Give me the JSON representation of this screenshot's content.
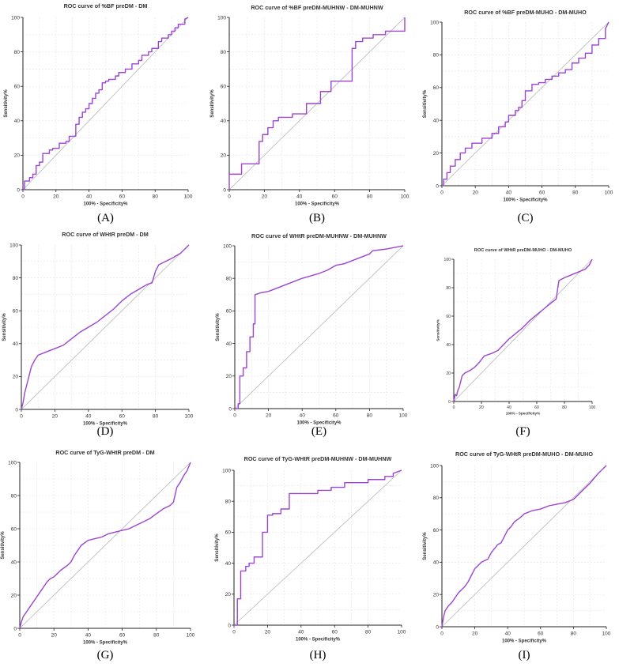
{
  "colors": {
    "roc": "#9b45d1",
    "reference": "#b8b8b8",
    "grid": "#e4e4e4",
    "axis": "#222222"
  },
  "chart_data": [
    {
      "panel": "(A)",
      "type": "line",
      "title": "ROC curve of %BF preDM - DM",
      "xlabel": "100% - Specificity%",
      "ylabel": "Sensitivity%",
      "xlim": [
        0,
        100
      ],
      "ylim": [
        0,
        100
      ],
      "xticks": [
        "0",
        "20",
        "40",
        "60",
        "80",
        "100"
      ],
      "yticks": [
        "0",
        "20",
        "40",
        "60",
        "80",
        "100"
      ],
      "grid": true,
      "series": [
        {
          "x": [
            0,
            1,
            1,
            4,
            4,
            6,
            6,
            8,
            8,
            10,
            10,
            12,
            12,
            16,
            16,
            18,
            18,
            22,
            22,
            26,
            26,
            28,
            28,
            32,
            32,
            34,
            34,
            36,
            36,
            38,
            38,
            40,
            40,
            42,
            42,
            44,
            44,
            46,
            46,
            48,
            48,
            50,
            50,
            52,
            52,
            56,
            56,
            58,
            58,
            62,
            62,
            66,
            66,
            70,
            70,
            72,
            72,
            76,
            76,
            78,
            78,
            82,
            82,
            84,
            84,
            88,
            88,
            90,
            90,
            92,
            92,
            94,
            94,
            98,
            98,
            100
          ],
          "y": [
            0,
            0,
            5,
            5,
            7,
            7,
            9,
            9,
            14,
            14,
            16,
            16,
            21,
            21,
            23,
            23,
            24,
            24,
            27,
            27,
            28,
            28,
            31,
            31,
            38,
            38,
            42,
            42,
            45,
            45,
            47,
            47,
            50,
            50,
            53,
            53,
            56,
            56,
            58,
            58,
            62,
            62,
            63,
            63,
            64,
            64,
            66,
            66,
            68,
            68,
            70,
            70,
            73,
            73,
            75,
            75,
            78,
            78,
            80,
            80,
            82,
            82,
            86,
            86,
            88,
            88,
            90,
            90,
            92,
            92,
            94,
            94,
            96,
            96,
            99,
            100
          ]
        }
      ]
    },
    {
      "panel": "(B)",
      "type": "line",
      "title": "ROC curve of %BF preDM-MUHNW - DM-MUHNW",
      "xlabel": "100% - Specificity%",
      "ylabel": "Sensitivity%",
      "xlim": [
        0,
        100
      ],
      "ylim": [
        0,
        100
      ],
      "xticks": [
        "0",
        "20",
        "40",
        "60",
        "80",
        "100"
      ],
      "yticks": [
        "0",
        "20",
        "40",
        "60",
        "80",
        "100"
      ],
      "grid": true,
      "series": [
        {
          "x": [
            0,
            0,
            7,
            7,
            17,
            17,
            19,
            19,
            22,
            22,
            25,
            25,
            28,
            28,
            36,
            36,
            44,
            44,
            52,
            52,
            58,
            58,
            70,
            70,
            72,
            72,
            76,
            76,
            82,
            82,
            89,
            89,
            100,
            100
          ],
          "y": [
            0,
            9,
            9,
            15,
            15,
            28,
            28,
            32,
            32,
            36,
            36,
            40,
            40,
            42,
            42,
            44,
            44,
            50,
            50,
            57,
            57,
            63,
            63,
            82,
            82,
            86,
            86,
            88,
            88,
            90,
            90,
            92,
            92,
            100
          ]
        }
      ]
    },
    {
      "panel": "(C)",
      "type": "line",
      "title": "ROC curve of %BF preDM-MUHO - DM-MUHO",
      "xlabel": "100% - Specificity%",
      "ylabel": "Sensitivity%",
      "xlim": [
        0,
        100
      ],
      "ylim": [
        0,
        100
      ],
      "xticks": [
        "0",
        "20",
        "40",
        "60",
        "80",
        "100"
      ],
      "yticks": [
        "0",
        "20",
        "40",
        "60",
        "80",
        "100"
      ],
      "grid": true,
      "series": [
        {
          "x": [
            0,
            1,
            1,
            3,
            3,
            5,
            5,
            8,
            8,
            11,
            11,
            14,
            14,
            18,
            18,
            24,
            24,
            30,
            30,
            34,
            34,
            38,
            38,
            40,
            40,
            44,
            44,
            46,
            46,
            48,
            48,
            50,
            50,
            54,
            54,
            58,
            58,
            62,
            62,
            66,
            66,
            70,
            70,
            74,
            74,
            78,
            78,
            82,
            82,
            86,
            86,
            90,
            90,
            94,
            94,
            98,
            98,
            100
          ],
          "y": [
            0,
            0,
            4,
            4,
            8,
            8,
            12,
            12,
            16,
            16,
            20,
            20,
            23,
            23,
            26,
            26,
            29,
            29,
            32,
            32,
            36,
            36,
            39,
            39,
            43,
            43,
            46,
            46,
            48,
            48,
            52,
            52,
            58,
            58,
            62,
            62,
            63,
            63,
            65,
            65,
            67,
            67,
            69,
            69,
            71,
            71,
            75,
            75,
            78,
            78,
            81,
            81,
            86,
            86,
            90,
            90,
            96,
            100
          ]
        }
      ]
    },
    {
      "panel": "(D)",
      "type": "line",
      "title": "ROC curve of WHtR preDM - DM",
      "xlabel": "100% - Specificity%",
      "ylabel": "Sensitivity%",
      "xlim": [
        0,
        100
      ],
      "ylim": [
        0,
        100
      ],
      "xticks": [
        "0",
        "20",
        "40",
        "60",
        "80",
        "100"
      ],
      "yticks": [
        "0",
        "20",
        "40",
        "60",
        "80",
        "100"
      ],
      "grid": true,
      "series": [
        {
          "x": [
            0,
            1,
            2,
            3,
            4,
            6,
            8,
            10,
            15,
            20,
            25,
            30,
            35,
            40,
            45,
            50,
            55,
            60,
            65,
            70,
            75,
            78,
            80,
            82,
            86,
            90,
            95,
            98,
            100
          ],
          "y": [
            0,
            4,
            10,
            14,
            18,
            26,
            30,
            33,
            35,
            37,
            39,
            43,
            47,
            50,
            53,
            57,
            61,
            66,
            70,
            73,
            76,
            77,
            84,
            88,
            90,
            92,
            95,
            98,
            100
          ]
        }
      ]
    },
    {
      "panel": "(E)",
      "type": "line",
      "title": "ROC curve of WHtR preDM-MUHNW - DM-MUHNW",
      "xlabel": "100% - Specificity%",
      "ylabel": "Sensitivity%",
      "xlim": [
        0,
        100
      ],
      "ylim": [
        0,
        100
      ],
      "xticks": [
        "0",
        "20",
        "40",
        "60",
        "80",
        "100"
      ],
      "yticks": [
        "0",
        "20",
        "40",
        "60",
        "80",
        "100"
      ],
      "grid": true,
      "series": [
        {
          "x": [
            0,
            2,
            2,
            3,
            3,
            5,
            5,
            7,
            7,
            9,
            9,
            11,
            11,
            12,
            12,
            15,
            20,
            25,
            30,
            40,
            50,
            55,
            60,
            65,
            70,
            75,
            80,
            82,
            90,
            95,
            100
          ],
          "y": [
            0,
            0,
            3,
            3,
            20,
            20,
            25,
            25,
            35,
            35,
            44,
            44,
            52,
            52,
            70,
            71,
            72,
            74,
            76,
            80,
            83,
            85,
            88,
            89,
            91,
            93,
            95,
            97,
            98,
            99,
            100
          ]
        }
      ]
    },
    {
      "panel": "(F)",
      "type": "line",
      "title": "ROC curve of WHtR preDM-MUHO - DM-MUHO",
      "xlabel": "100% - Specificity%",
      "ylabel": "Sensitivity%",
      "xlim": [
        0,
        100
      ],
      "ylim": [
        0,
        100
      ],
      "xticks": [
        "0",
        "20",
        "40",
        "60",
        "80",
        "100"
      ],
      "yticks": [
        "0",
        "20",
        "40",
        "60",
        "80",
        "100"
      ],
      "grid": true,
      "series": [
        {
          "x": [
            0,
            1,
            2,
            3,
            4,
            5,
            6,
            8,
            10,
            12,
            15,
            18,
            22,
            28,
            32,
            36,
            40,
            45,
            50,
            55,
            60,
            65,
            70,
            74,
            76,
            80,
            85,
            90,
            95,
            98,
            100
          ],
          "y": [
            0,
            5,
            4,
            8,
            10,
            14,
            18,
            20,
            21,
            22,
            24,
            27,
            32,
            34,
            36,
            40,
            44,
            48,
            52,
            57,
            61,
            65,
            69,
            72,
            85,
            87,
            89,
            91,
            93,
            96,
            100
          ]
        }
      ]
    },
    {
      "panel": "(G)",
      "type": "line",
      "title": "ROC curve of TyG-WHtR preDM - DM",
      "xlabel": "100% - Specificity%",
      "ylabel": "Sensitivity%",
      "xlim": [
        0,
        100
      ],
      "ylim": [
        0,
        100
      ],
      "xticks": [
        "0",
        "20",
        "40",
        "60",
        "80",
        "100"
      ],
      "yticks": [
        "0",
        "20",
        "40",
        "60",
        "80",
        "100"
      ],
      "grid": true,
      "series": [
        {
          "x": [
            0,
            1,
            2,
            4,
            6,
            8,
            10,
            12,
            14,
            16,
            18,
            20,
            22,
            24,
            28,
            30,
            32,
            34,
            36,
            40,
            44,
            48,
            52,
            56,
            60,
            64,
            68,
            72,
            76,
            80,
            84,
            88,
            90,
            92,
            94,
            96,
            98,
            100
          ],
          "y": [
            0,
            4,
            7,
            10,
            13,
            16,
            19,
            22,
            25,
            28,
            30,
            31,
            33,
            35,
            38,
            40,
            44,
            47,
            50,
            53,
            54,
            55,
            57,
            58,
            59,
            60,
            62,
            64,
            66,
            69,
            72,
            74,
            76,
            85,
            88,
            92,
            95,
            100
          ]
        }
      ]
    },
    {
      "panel": "(H)",
      "type": "line",
      "title": "ROC curve of TyG-WHtR preDM-MUHNW - DM-MUHNW",
      "xlabel": "100% - Specificity%",
      "ylabel": "Sensitivity%",
      "xlim": [
        0,
        100
      ],
      "ylim": [
        0,
        100
      ],
      "xticks": [
        "0",
        "20",
        "40",
        "60",
        "80",
        "100"
      ],
      "yticks": [
        "0",
        "20",
        "40",
        "60",
        "80",
        "100"
      ],
      "grid": true,
      "series": [
        {
          "x": [
            0,
            2,
            2,
            4,
            4,
            7,
            7,
            9,
            9,
            12,
            12,
            17,
            17,
            20,
            20,
            23,
            23,
            28,
            28,
            33,
            33,
            50,
            50,
            58,
            58,
            66,
            66,
            80,
            80,
            90,
            90,
            95,
            95,
            100
          ],
          "y": [
            0,
            0,
            17,
            17,
            35,
            35,
            38,
            38,
            40,
            40,
            44,
            44,
            60,
            60,
            71,
            71,
            72,
            72,
            75,
            75,
            85,
            85,
            87,
            87,
            89,
            89,
            92,
            92,
            94,
            94,
            96,
            96,
            98,
            100
          ]
        }
      ]
    },
    {
      "panel": "(I)",
      "type": "line",
      "title": "ROC curve of TyG-WHtR preDM-MUHO - DM-MUHO",
      "xlabel": "100% - Specificity%",
      "ylabel": "Sensitivity%",
      "xlim": [
        0,
        100
      ],
      "ylim": [
        0,
        100
      ],
      "xticks": [
        "0",
        "20",
        "40",
        "60",
        "80",
        "100"
      ],
      "yticks": [
        "0",
        "20",
        "40",
        "60",
        "80",
        "100"
      ],
      "grid": true,
      "series": [
        {
          "x": [
            0,
            1,
            2,
            4,
            6,
            8,
            10,
            12,
            14,
            16,
            18,
            20,
            22,
            24,
            28,
            30,
            34,
            36,
            40,
            42,
            44,
            48,
            50,
            55,
            60,
            65,
            70,
            75,
            80,
            85,
            90,
            95,
            100
          ],
          "y": [
            0,
            6,
            10,
            13,
            15,
            18,
            21,
            23,
            25,
            28,
            32,
            36,
            38,
            40,
            42,
            46,
            51,
            52,
            60,
            62,
            65,
            68,
            70,
            72,
            73,
            75,
            76,
            77,
            79,
            84,
            89,
            95,
            100
          ]
        }
      ]
    }
  ]
}
